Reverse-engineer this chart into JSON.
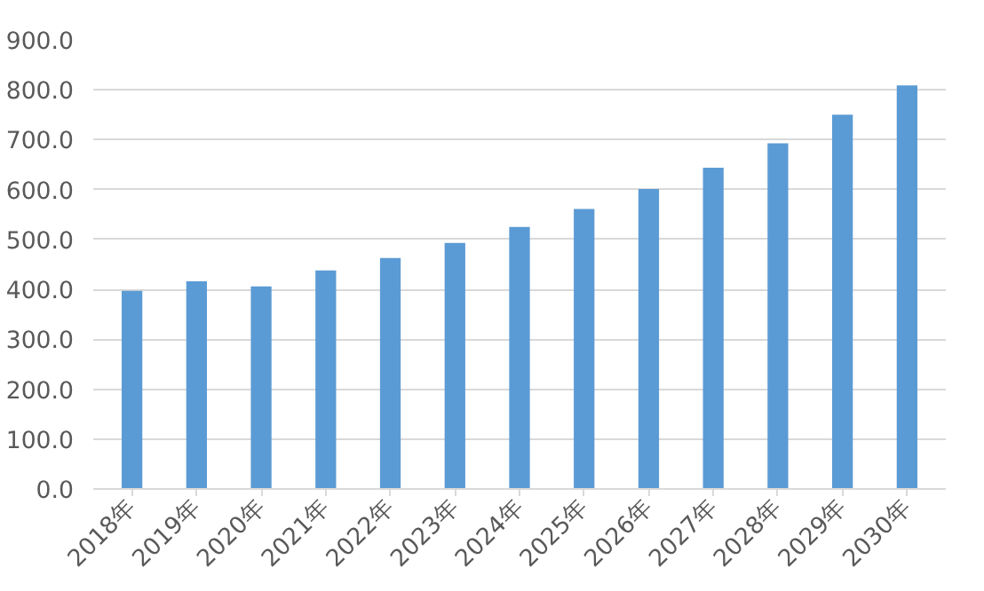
{
  "chart_data": {
    "type": "bar",
    "categories": [
      "2018年",
      "2019年",
      "2020年",
      "2021年",
      "2022年",
      "2023年",
      "2024年",
      "2025年",
      "2026年",
      "2027年",
      "2028年",
      "2029年",
      "2030年"
    ],
    "values": [
      397,
      416,
      406,
      438,
      463,
      493,
      525,
      561,
      601,
      644,
      693,
      750,
      809
    ],
    "color": "#5b9bd5",
    "ylim": [
      0,
      900
    ],
    "yticks": [
      {
        "value": 0,
        "label": "0.0"
      },
      {
        "value": 100,
        "label": "100.0"
      },
      {
        "value": 200,
        "label": "200.0"
      },
      {
        "value": 300,
        "label": "300.0"
      },
      {
        "value": 400,
        "label": "400.0"
      },
      {
        "value": 500,
        "label": "500.0"
      },
      {
        "value": 600,
        "label": "600.0"
      },
      {
        "value": 700,
        "label": "700.0"
      },
      {
        "value": 800,
        "label": "800.0"
      },
      {
        "value": 900,
        "label": "900.0"
      }
    ],
    "grid": "y"
  }
}
